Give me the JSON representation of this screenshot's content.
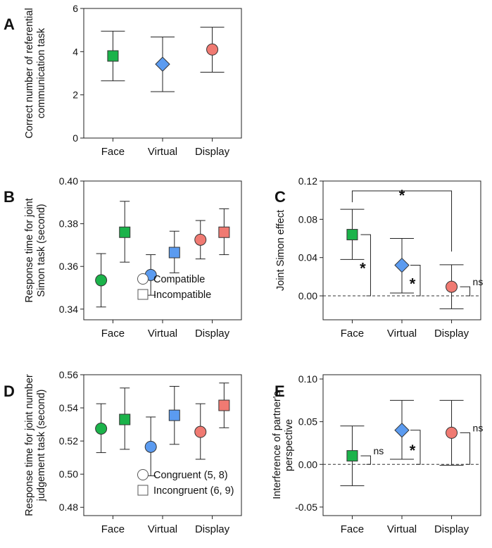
{
  "colors": {
    "face": "#1bb34a",
    "virtual": "#5b9bf0",
    "display": "#f07a72",
    "axis": "#222222"
  },
  "chart_data": [
    {
      "id": "A",
      "type": "scatter",
      "letter": "A",
      "ylabel": [
        "Correct number of referential",
        "communication task"
      ],
      "ylim": [
        0,
        6
      ],
      "yticks": [
        0,
        2,
        4,
        6
      ],
      "categories": [
        "Face",
        "Virtual",
        "Display"
      ],
      "series": [
        {
          "name": "Face",
          "values": [
            3.8
          ],
          "err_low": [
            2.65
          ],
          "err_high": [
            4.95
          ],
          "marker": "square",
          "color": "face"
        },
        {
          "name": "Virtual",
          "values": [
            3.42
          ],
          "err_low": [
            2.15
          ],
          "err_high": [
            4.68
          ],
          "marker": "diamond",
          "color": "virtual"
        },
        {
          "name": "Display",
          "values": [
            4.1
          ],
          "err_low": [
            3.05
          ],
          "err_high": [
            5.13
          ],
          "marker": "circle",
          "color": "display"
        }
      ]
    },
    {
      "id": "B",
      "type": "scatter",
      "letter": "B",
      "ylabel": [
        "Response time for  joint",
        "Simon task (second)"
      ],
      "ylim": [
        0.335,
        0.4
      ],
      "yticks": [
        "0.34",
        "0.36",
        "0.38",
        "0.40"
      ],
      "categories": [
        "Face",
        "Virtual",
        "Display"
      ],
      "series": [
        {
          "name": "Compatible",
          "marker": "circle",
          "values": [
            0.3535,
            0.356,
            0.3725
          ],
          "err_low": [
            0.341,
            0.3465,
            0.3635
          ],
          "err_high": [
            0.366,
            0.3655,
            0.3815
          ]
        },
        {
          "name": "Incompatible",
          "marker": "square",
          "values": [
            0.376,
            0.3665,
            0.376
          ],
          "err_low": [
            0.362,
            0.357,
            0.3655
          ],
          "err_high": [
            0.3905,
            0.3765,
            0.387
          ]
        }
      ],
      "legend": [
        "Compatible",
        "Incompatible"
      ]
    },
    {
      "id": "C",
      "type": "scatter",
      "letter": "C",
      "ylabel": [
        "Joint Simon effect"
      ],
      "ylim": [
        -0.025,
        0.12
      ],
      "yticks": [
        "0.00",
        "0.04",
        "0.08",
        "0.12"
      ],
      "categories": [
        "Face",
        "Virtual",
        "Display"
      ],
      "series": [
        {
          "name": "Face",
          "values": [
            0.064
          ],
          "err_low": [
            0.038
          ],
          "err_high": [
            0.0905
          ],
          "marker": "square",
          "color": "face"
        },
        {
          "name": "Virtual",
          "values": [
            0.032
          ],
          "err_low": [
            0.003
          ],
          "err_high": [
            0.06
          ],
          "marker": "diamond",
          "color": "virtual"
        },
        {
          "name": "Display",
          "values": [
            0.0095
          ],
          "err_low": [
            -0.0135
          ],
          "err_high": [
            0.0325
          ],
          "marker": "circle",
          "color": "display"
        }
      ],
      "reference_line": 0,
      "annotations": [
        {
          "kind": "star-vs-zero",
          "category": 0,
          "label": "*"
        },
        {
          "kind": "star-vs-zero",
          "category": 1,
          "label": "*"
        },
        {
          "kind": "ns-vs-zero",
          "category": 2,
          "label": "ns"
        },
        {
          "kind": "bracket",
          "from": 0,
          "to": 2,
          "label": "*"
        }
      ]
    },
    {
      "id": "D",
      "type": "scatter",
      "letter": "D",
      "ylabel": [
        "Response time for joint number",
        "judgement task (second)"
      ],
      "ylim": [
        0.475,
        0.56
      ],
      "yticks": [
        "0.48",
        "0.50",
        "0.52",
        "0.54",
        "0.56"
      ],
      "categories": [
        "Face",
        "Virtual",
        "Display"
      ],
      "series": [
        {
          "name": "Congruent (5, 8)",
          "marker": "circle",
          "values": [
            0.5275,
            0.5165,
            0.5255
          ],
          "err_low": [
            0.513,
            0.499,
            0.509
          ],
          "err_high": [
            0.5425,
            0.5345,
            0.5425
          ]
        },
        {
          "name": "Incongruent (6, 9)",
          "marker": "square",
          "values": [
            0.533,
            0.5355,
            0.5415
          ],
          "err_low": [
            0.515,
            0.518,
            0.528
          ],
          "err_high": [
            0.552,
            0.553,
            0.555
          ]
        }
      ],
      "legend": [
        "Congruent (5, 8)",
        "Incongruent (6, 9)"
      ]
    },
    {
      "id": "E",
      "type": "scatter",
      "letter": "E",
      "ylabel": [
        "Interference of partner's",
        "perspective"
      ],
      "ylim": [
        -0.06,
        0.105
      ],
      "yticks": [
        "-0.05",
        "0.00",
        "0.05",
        "0.10"
      ],
      "categories": [
        "Face",
        "Virtual",
        "Display"
      ],
      "series": [
        {
          "name": "Face",
          "values": [
            0.01
          ],
          "err_low": [
            -0.025
          ],
          "err_high": [
            0.045
          ],
          "marker": "square",
          "color": "face"
        },
        {
          "name": "Virtual",
          "values": [
            0.04
          ],
          "err_low": [
            0.006
          ],
          "err_high": [
            0.075
          ],
          "marker": "diamond",
          "color": "virtual"
        },
        {
          "name": "Display",
          "values": [
            0.037
          ],
          "err_low": [
            -0.001
          ],
          "err_high": [
            0.075
          ],
          "marker": "circle",
          "color": "display"
        }
      ],
      "reference_line": 0,
      "annotations": [
        {
          "kind": "ns-vs-zero",
          "category": 0,
          "label": "ns"
        },
        {
          "kind": "star-vs-zero",
          "category": 1,
          "label": "*"
        },
        {
          "kind": "ns-vs-zero",
          "category": 2,
          "label": "ns"
        }
      ]
    }
  ]
}
